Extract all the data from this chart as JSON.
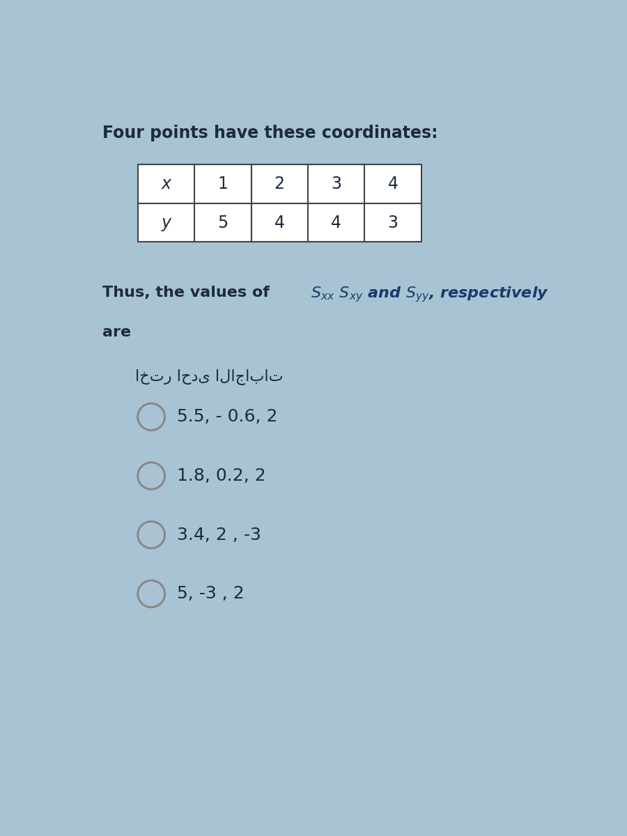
{
  "title": "Four points have these coordinates:",
  "table_headers": [
    "x",
    "1",
    "2",
    "3",
    "4"
  ],
  "table_row": [
    "y",
    "5",
    "4",
    "4",
    "3"
  ],
  "arabic_label": "اختر احدى الاجابات",
  "options": [
    "5.5, - 0.6, 2",
    "1.8, 0.2, 2",
    "3.4, 2 , -3",
    "5, -3 , 2"
  ],
  "bg_color": "#a8c4d4",
  "text_color": "#1e2a40",
  "title_fontsize": 17,
  "question_fontsize": 16,
  "option_fontsize": 18,
  "arabic_fontsize": 16
}
